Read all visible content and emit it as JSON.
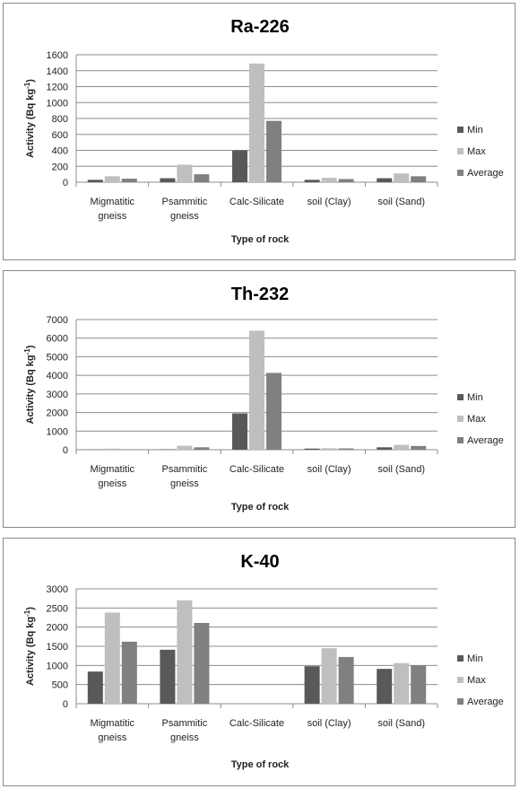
{
  "series_colors": [
    "#595959",
    "#bfbfbf",
    "#808080"
  ],
  "chart_data": [
    {
      "type": "bar",
      "title": "Ra-226",
      "xlabel": "Type of rock",
      "ylabel": "Activity (Bq  kg-1)",
      "ylim": [
        0,
        1600
      ],
      "yticks": [
        0,
        200,
        400,
        600,
        800,
        1000,
        1200,
        1400,
        1600
      ],
      "categories": [
        [
          "Migmatitic",
          "gneiss"
        ],
        [
          "Psammitic",
          "gneiss"
        ],
        [
          "Calc-Silicate"
        ],
        [
          "soil (Clay)"
        ],
        [
          "soil (Sand)"
        ]
      ],
      "series": [
        {
          "name": "Min",
          "values": [
            30,
            50,
            400,
            30,
            50
          ]
        },
        {
          "name": "Max",
          "values": [
            75,
            220,
            1490,
            55,
            110
          ]
        },
        {
          "name": "Average",
          "values": [
            45,
            100,
            770,
            40,
            75
          ]
        }
      ],
      "legend": "right",
      "grid": true
    },
    {
      "type": "bar",
      "title": "Th-232",
      "xlabel": "Type of rock",
      "ylabel": "Activity (Bq  kg-1)",
      "ylim": [
        0,
        7000
      ],
      "yticks": [
        0,
        1000,
        2000,
        3000,
        4000,
        5000,
        6000,
        7000
      ],
      "categories": [
        [
          "Migmatitic",
          "gneiss"
        ],
        [
          "Psammitic",
          "gneiss"
        ],
        [
          "Calc-Silicate"
        ],
        [
          "soil (Clay)"
        ],
        [
          "soil (Sand)"
        ]
      ],
      "series": [
        {
          "name": "Min",
          "values": [
            10,
            20,
            1950,
            60,
            130
          ]
        },
        {
          "name": "Max",
          "values": [
            60,
            210,
            6400,
            80,
            260
          ]
        },
        {
          "name": "Average",
          "values": [
            20,
            130,
            4130,
            70,
            200
          ]
        }
      ],
      "legend": "right",
      "grid": true
    },
    {
      "type": "bar",
      "title": "K-40",
      "xlabel": "Type of rock",
      "ylabel": "Activity (Bq  kg-1)",
      "ylim": [
        0,
        3000
      ],
      "yticks": [
        0,
        500,
        1000,
        1500,
        2000,
        2500,
        3000
      ],
      "categories": [
        [
          "Migmatitic",
          "gneiss"
        ],
        [
          "Psammitic",
          "gneiss"
        ],
        [
          "Calc-Silicate"
        ],
        [
          "soil (Clay)"
        ],
        [
          "soil (Sand)"
        ]
      ],
      "series": [
        {
          "name": "Min",
          "values": [
            840,
            1410,
            0,
            980,
            910
          ]
        },
        {
          "name": "Max",
          "values": [
            2380,
            2700,
            0,
            1450,
            1060
          ]
        },
        {
          "name": "Average",
          "values": [
            1620,
            2110,
            0,
            1220,
            1000
          ]
        }
      ],
      "legend": "right",
      "grid": true
    }
  ]
}
